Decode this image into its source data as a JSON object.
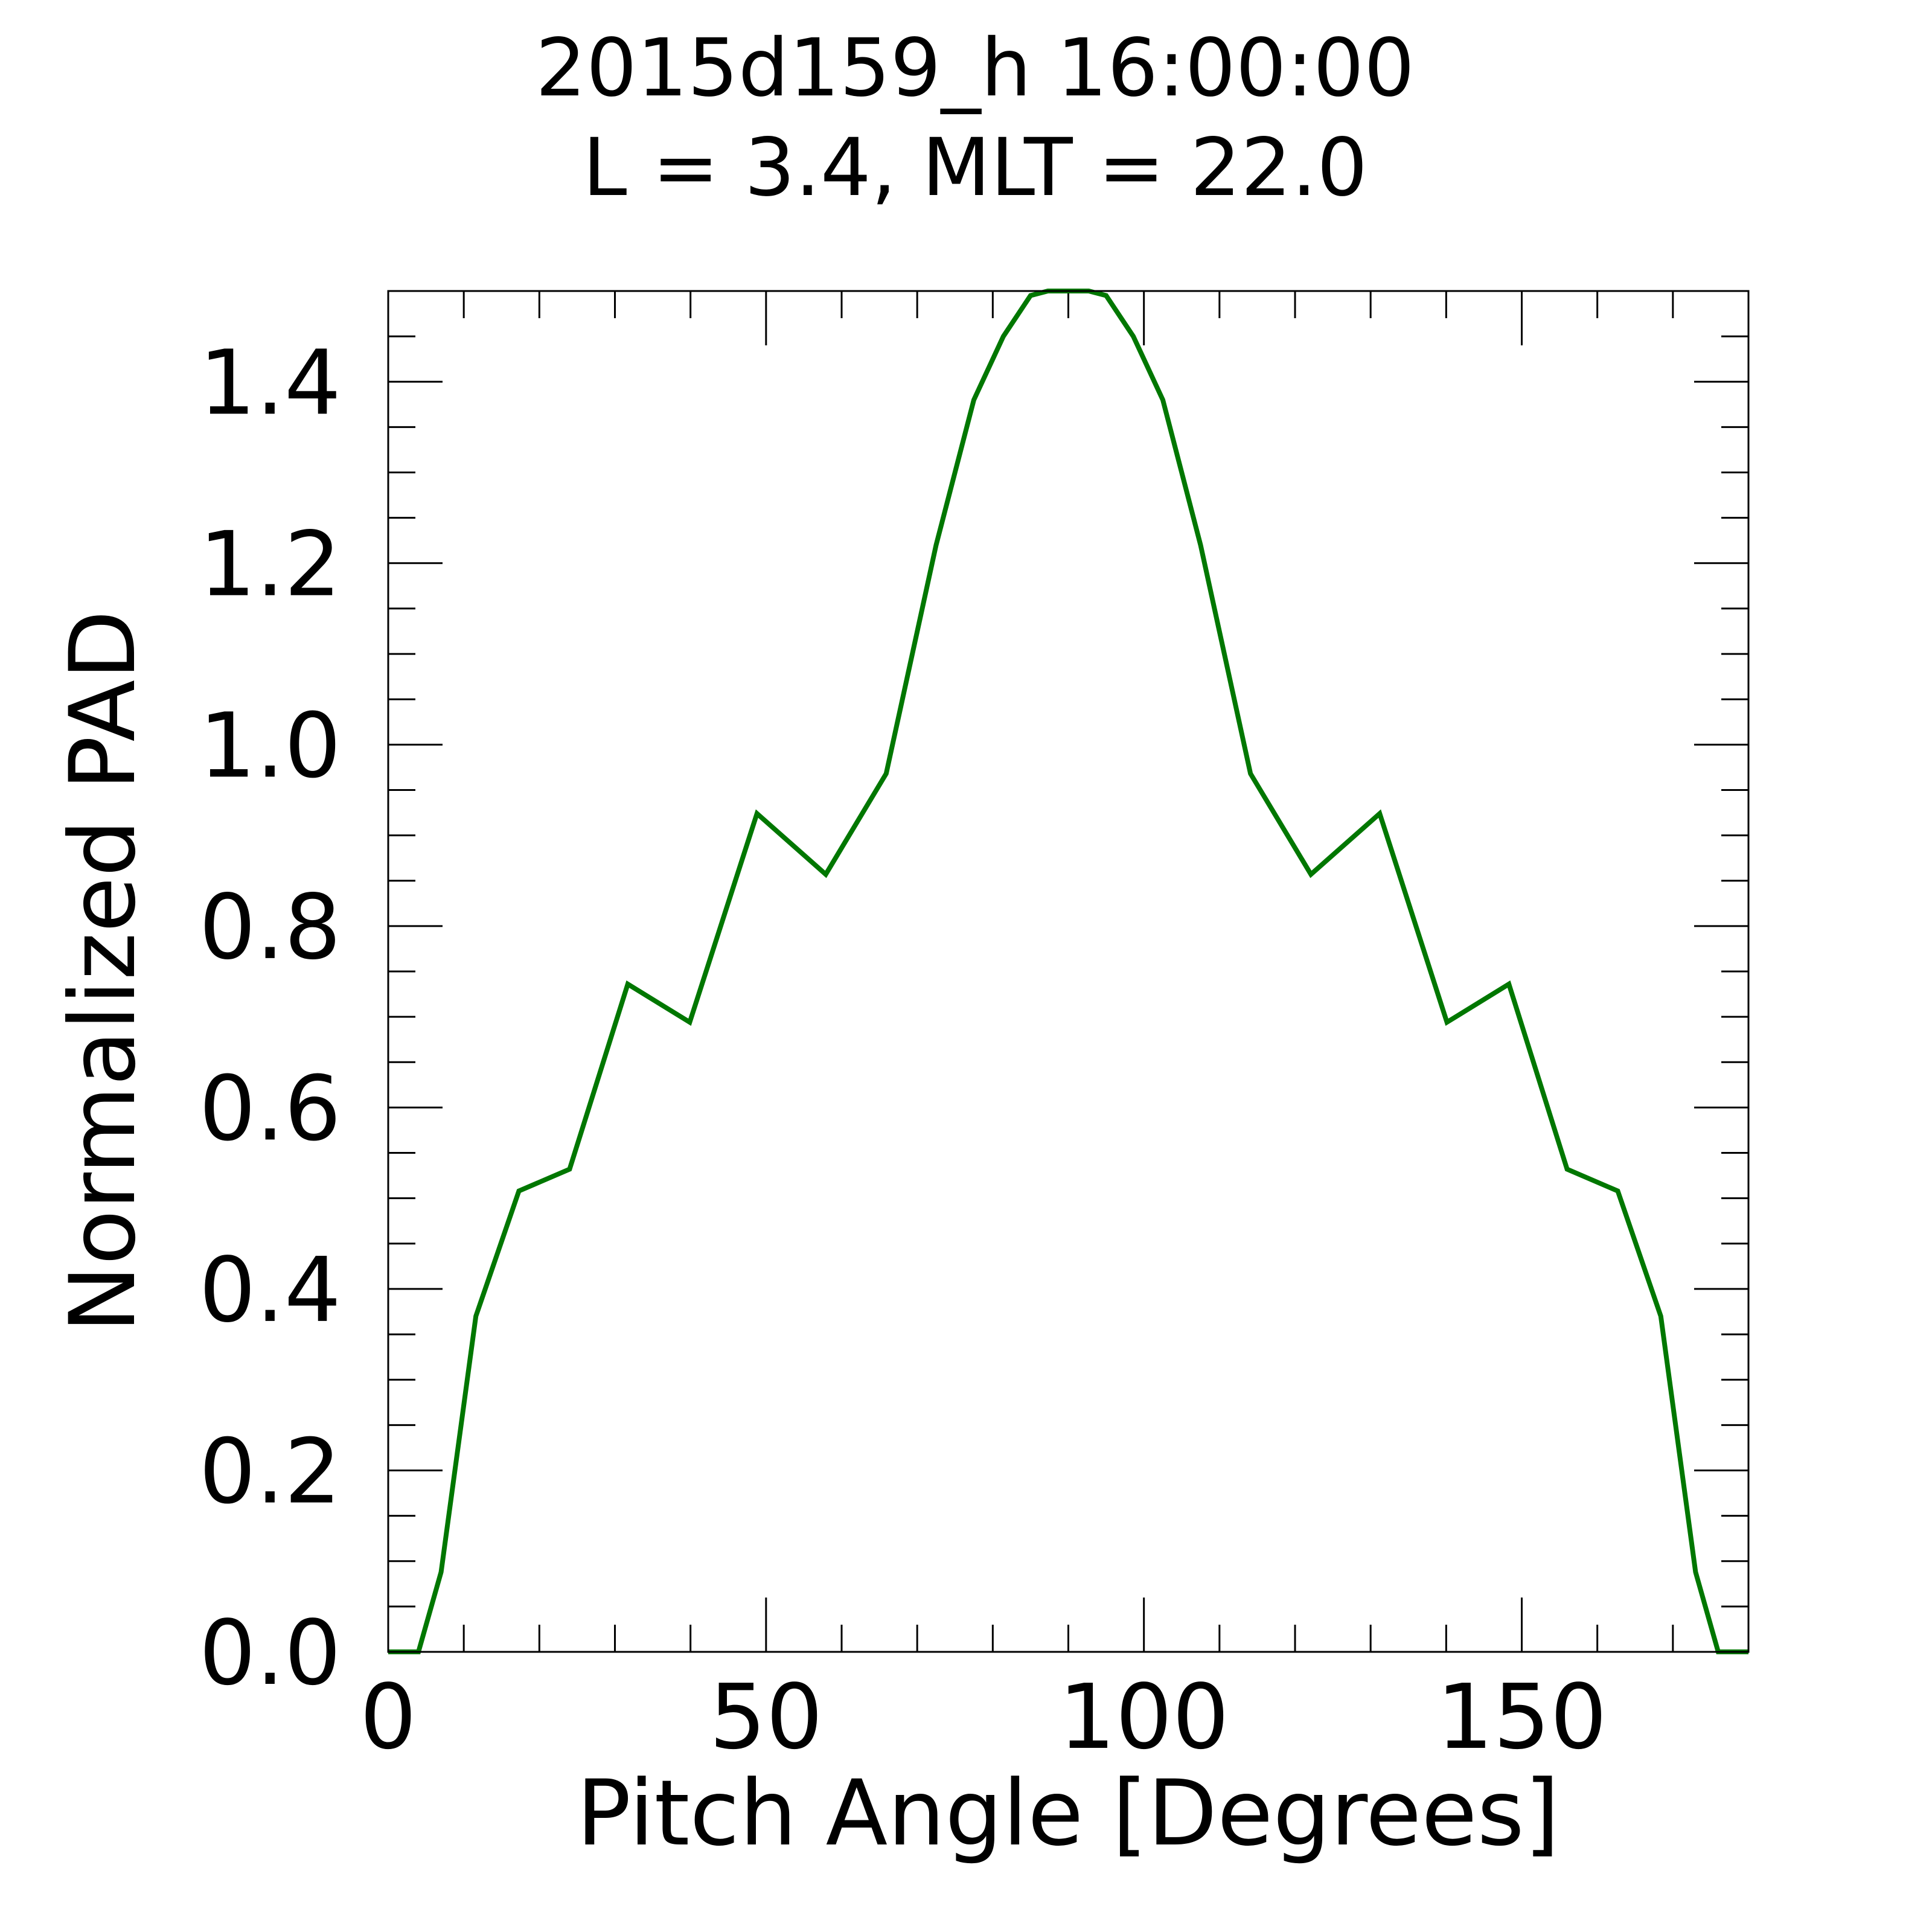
{
  "chart_data": {
    "type": "line",
    "title": "2015d159_h  16:00:00",
    "subtitle": "L = 3.4, MLT = 22.0",
    "xlabel": "Pitch Angle [Degrees]",
    "ylabel": "Normalized PAD",
    "xlim": [
      0,
      180
    ],
    "ylim": [
      0,
      1.5
    ],
    "xticks": [
      0,
      50,
      100,
      150
    ],
    "xtick_labels": [
      "0",
      "50",
      "100",
      "150"
    ],
    "yticks": [
      0.0,
      0.2,
      0.4,
      0.6,
      0.8,
      1.0,
      1.2,
      1.4
    ],
    "ytick_labels": [
      "0.0",
      "0.2",
      "0.4",
      "0.6",
      "0.8",
      "1.0",
      "1.2",
      "1.4"
    ],
    "x_minor_step": 10,
    "y_minor_step": 0.05,
    "grid": false,
    "series": [
      {
        "color": "#007700",
        "x": [
          0,
          4,
          7,
          11.6,
          17.3,
          24,
          31.7,
          39.9,
          48.8,
          57.9,
          65.9,
          72.5,
          77.5,
          81.4,
          85,
          87.3,
          90,
          92.7,
          95,
          98.6,
          102.5,
          107.5,
          114.1,
          122.1,
          131.2,
          140.1,
          148.3,
          156,
          162.7,
          168.4,
          173,
          176,
          180
        ],
        "y": [
          0,
          0,
          0.088,
          0.37,
          0.508,
          0.532,
          0.736,
          0.694,
          0.924,
          0.857,
          0.968,
          1.22,
          1.38,
          1.45,
          1.495,
          1.502,
          1.502,
          1.502,
          1.495,
          1.45,
          1.38,
          1.22,
          0.968,
          0.857,
          0.924,
          0.694,
          0.736,
          0.532,
          0.508,
          0.37,
          0.088,
          0,
          0
        ]
      }
    ]
  }
}
